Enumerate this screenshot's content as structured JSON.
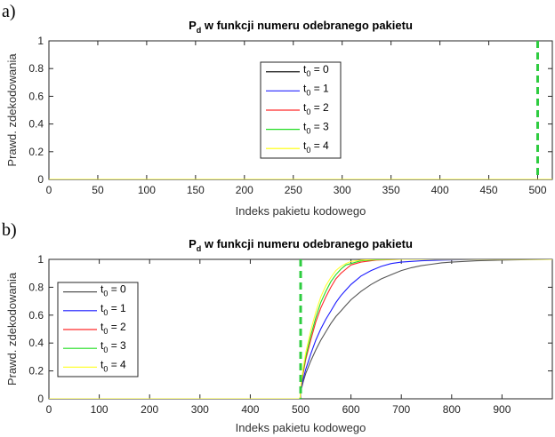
{
  "chart_data": [
    {
      "id": "a",
      "panel_label": "a)",
      "type": "line",
      "title": "P",
      "title_subscript": "d",
      "title_rest": " w funkcji numeru odebranego pakietu",
      "xlabel": "Indeks pakietu kodowego",
      "ylabel": "Prawd. zdekodowania",
      "xlim": [
        0,
        515
      ],
      "ylim": [
        0,
        1
      ],
      "xticks": [
        0,
        50,
        100,
        150,
        200,
        250,
        300,
        350,
        400,
        450,
        500
      ],
      "yticks": [
        0,
        0.2,
        0.4,
        0.6,
        0.8,
        1
      ],
      "ytick_labels": [
        "0",
        "0.2",
        "0.4",
        "0.6",
        "0.8",
        "1"
      ],
      "grid": false,
      "legend_position": "center",
      "vline": {
        "x": 500,
        "color": "#2ecc40"
      },
      "series": [
        {
          "name_prefix": "t",
          "name_sub": "0",
          "name_suffix": " = 0",
          "color": "#000000",
          "x": [
            0,
            515
          ],
          "y": [
            0,
            0
          ]
        },
        {
          "name_prefix": "t",
          "name_sub": "0",
          "name_suffix": " = 1",
          "color": "#3b3bff",
          "x": [
            0,
            515
          ],
          "y": [
            0,
            0
          ]
        },
        {
          "name_prefix": "t",
          "name_sub": "0",
          "name_suffix": " = 2",
          "color": "#ff2a2a",
          "x": [
            0,
            515
          ],
          "y": [
            0,
            0
          ]
        },
        {
          "name_prefix": "t",
          "name_sub": "0",
          "name_suffix": " = 3",
          "color": "#22dd22",
          "x": [
            0,
            515
          ],
          "y": [
            0,
            0
          ]
        },
        {
          "name_prefix": "t",
          "name_sub": "0",
          "name_suffix": " = 4",
          "color": "#ffff00",
          "x": [
            0,
            515
          ],
          "y": [
            0,
            0
          ]
        }
      ]
    },
    {
      "id": "b",
      "panel_label": "b)",
      "type": "line",
      "title": "P",
      "title_subscript": "d",
      "title_rest": " w funkcji numeru odebranego pakietu",
      "xlabel": "Indeks pakietu kodowego",
      "ylabel": "Prawd. zdekodowania",
      "xlim": [
        0,
        1000
      ],
      "ylim": [
        0,
        1
      ],
      "xticks": [
        0,
        100,
        200,
        300,
        400,
        500,
        600,
        700,
        800,
        900
      ],
      "yticks": [
        0,
        0.2,
        0.4,
        0.6,
        0.8,
        1
      ],
      "ytick_labels": [
        "0",
        "0.2",
        "0.4",
        "0.6",
        "0.8",
        "1"
      ],
      "grid": false,
      "legend_position": "left",
      "vline": {
        "x": 500,
        "color": "#2ecc40"
      },
      "series": [
        {
          "name_prefix": "t",
          "name_sub": "0",
          "name_suffix": " = 0",
          "color": "#555555",
          "x": [
            0,
            499,
            500,
            505,
            510,
            520,
            530,
            540,
            550,
            560,
            570,
            580,
            590,
            600,
            620,
            640,
            660,
            680,
            700,
            720,
            740,
            760,
            780,
            800,
            850,
            900,
            950,
            1000
          ],
          "y": [
            0,
            0,
            0.05,
            0.12,
            0.18,
            0.27,
            0.35,
            0.42,
            0.48,
            0.54,
            0.59,
            0.63,
            0.67,
            0.71,
            0.77,
            0.82,
            0.86,
            0.89,
            0.92,
            0.94,
            0.955,
            0.965,
            0.975,
            0.98,
            0.99,
            0.995,
            0.998,
            1.0
          ]
        },
        {
          "name_prefix": "t",
          "name_sub": "0",
          "name_suffix": " = 1",
          "color": "#1a1aff",
          "x": [
            0,
            499,
            500,
            505,
            510,
            520,
            530,
            540,
            550,
            560,
            570,
            580,
            590,
            600,
            620,
            640,
            660,
            680,
            700,
            740,
            780,
            850,
            1000
          ],
          "y": [
            0,
            0,
            0.05,
            0.14,
            0.21,
            0.32,
            0.42,
            0.5,
            0.57,
            0.63,
            0.69,
            0.74,
            0.78,
            0.82,
            0.88,
            0.92,
            0.95,
            0.97,
            0.98,
            0.99,
            0.995,
            0.999,
            1.0
          ]
        },
        {
          "name_prefix": "t",
          "name_sub": "0",
          "name_suffix": " = 2",
          "color": "#ff2a2a",
          "x": [
            0,
            499,
            500,
            505,
            510,
            520,
            530,
            540,
            550,
            560,
            570,
            580,
            590,
            600,
            620,
            650,
            700,
            1000
          ],
          "y": [
            0,
            0,
            0.06,
            0.18,
            0.28,
            0.42,
            0.55,
            0.65,
            0.73,
            0.8,
            0.86,
            0.9,
            0.93,
            0.96,
            0.98,
            0.995,
            1.0,
            1.0
          ]
        },
        {
          "name_prefix": "t",
          "name_sub": "0",
          "name_suffix": " = 3",
          "color": "#22dd22",
          "x": [
            0,
            499,
            500,
            505,
            510,
            520,
            530,
            540,
            550,
            560,
            570,
            580,
            590,
            600,
            620,
            650,
            700,
            1000
          ],
          "y": [
            0,
            0,
            0.07,
            0.2,
            0.3,
            0.45,
            0.58,
            0.69,
            0.77,
            0.84,
            0.89,
            0.93,
            0.96,
            0.97,
            0.99,
            0.997,
            1.0,
            1.0
          ]
        },
        {
          "name_prefix": "t",
          "name_sub": "0",
          "name_suffix": " = 4",
          "color": "#ffff33",
          "x": [
            0,
            499,
            500,
            505,
            510,
            520,
            530,
            540,
            550,
            560,
            570,
            580,
            590,
            600,
            620,
            650,
            1000
          ],
          "y": [
            0,
            0,
            0.08,
            0.22,
            0.33,
            0.49,
            0.62,
            0.73,
            0.81,
            0.87,
            0.92,
            0.95,
            0.97,
            0.985,
            0.995,
            1.0,
            1.0
          ]
        }
      ]
    }
  ]
}
